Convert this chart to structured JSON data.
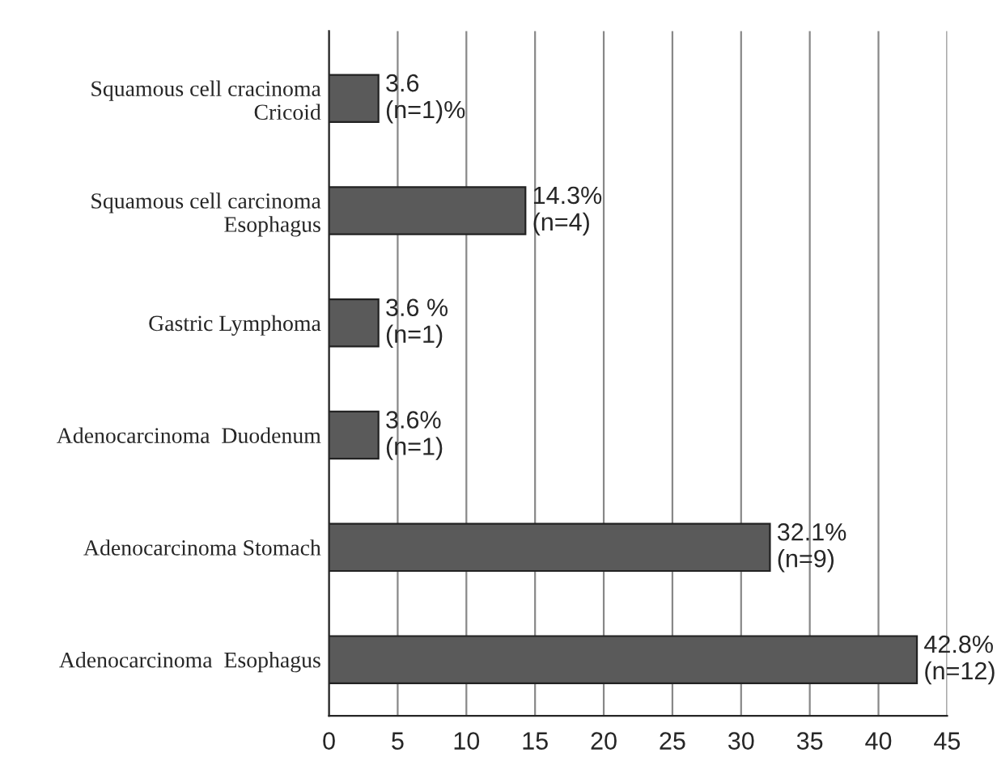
{
  "chart_data": {
    "type": "bar",
    "orientation": "horizontal",
    "categories": [
      "Squamous cell cracinoma\nCricoid",
      "Squamous cell carcinoma\nEsophagus",
      "Gastric Lymphoma",
      "Adenocarcinoma  Duodenum",
      "Adenocarcinoma Stomach",
      "Adenocarcinoma  Esophagus"
    ],
    "values": [
      3.6,
      14.3,
      3.6,
      3.6,
      32.1,
      42.8
    ],
    "value_labels": [
      "3.6\n(n=1)%",
      "14.3%\n(n=4)",
      "3.6 %\n(n=1)",
      "3.6%\n(n=1)",
      "32.1%\n(n=9)",
      "42.8%\n(n=12)"
    ],
    "color": "#5a5a5a",
    "xlim": [
      0,
      45
    ],
    "xticks": [
      0,
      5,
      10,
      15,
      20,
      25,
      30,
      35,
      40,
      45
    ],
    "grid": "x",
    "legend": false
  }
}
